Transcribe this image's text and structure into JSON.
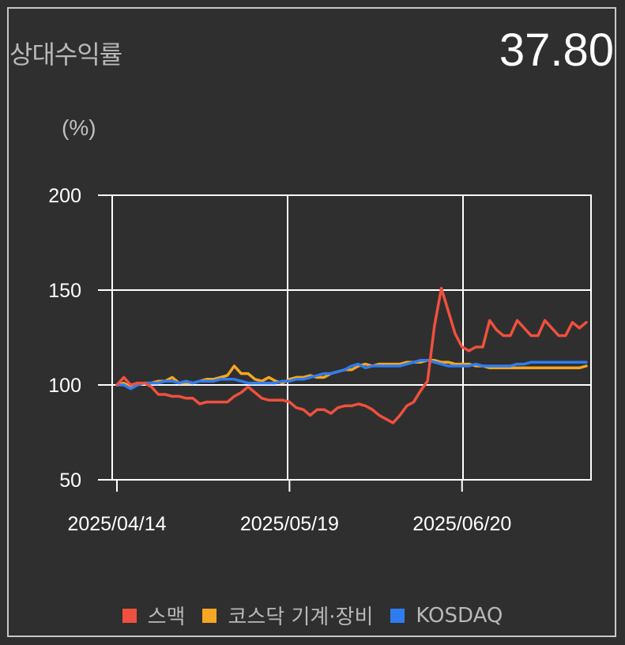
{
  "header": {
    "title": "상대수익률",
    "value": "37.80"
  },
  "chart_data": {
    "type": "line",
    "unit_label": "(%)",
    "ylim": [
      50,
      200
    ],
    "yticks": [
      50,
      100,
      150,
      200
    ],
    "x_tick_labels": [
      "2025/04/14",
      "2025/05/19",
      "2025/06/20"
    ],
    "x_tick_index": [
      0,
      25,
      50
    ],
    "num_points": 69,
    "grid": true,
    "legend_position": "bottom",
    "series": [
      {
        "name": "스맥",
        "color": "#f0503e",
        "values": [
          100,
          104,
          100,
          101,
          101,
          99,
          95,
          95,
          94,
          94,
          93,
          93,
          90,
          91,
          91,
          91,
          91,
          94,
          96,
          99,
          96,
          93,
          92,
          92,
          92,
          91,
          88,
          87,
          84,
          87,
          87,
          85,
          88,
          89,
          89,
          90,
          89,
          87,
          84,
          82,
          80,
          84,
          89,
          91,
          97,
          102,
          131,
          151,
          139,
          127,
          120,
          118,
          120,
          120,
          134,
          129,
          126,
          126,
          134,
          130,
          126,
          126,
          134,
          130,
          126,
          126,
          133,
          130,
          133
        ]
      },
      {
        "name": "코스닥 기계·장비",
        "color": "#f5a623",
        "values": [
          100,
          101,
          99,
          100,
          101,
          101,
          102,
          102,
          104,
          101,
          101,
          101,
          102,
          103,
          103,
          104,
          105,
          110,
          106,
          106,
          103,
          102,
          104,
          102,
          101,
          103,
          104,
          104,
          105,
          104,
          104,
          106,
          107,
          108,
          108,
          110,
          111,
          110,
          111,
          111,
          111,
          111,
          112,
          112,
          112,
          113,
          113,
          112,
          112,
          111,
          111,
          111,
          110,
          110,
          109,
          109,
          109,
          109,
          109,
          109,
          109,
          109,
          109,
          109,
          109,
          109,
          109,
          109,
          110
        ]
      },
      {
        "name": "KOSDAQ",
        "color": "#2f7cf0",
        "values": [
          100,
          100,
          98,
          100,
          101,
          101,
          101,
          102,
          102,
          101,
          102,
          101,
          102,
          102,
          102,
          103,
          103,
          103,
          102,
          101,
          101,
          101,
          101,
          101,
          102,
          102,
          103,
          103,
          104,
          105,
          106,
          106,
          107,
          108,
          110,
          111,
          109,
          110,
          110,
          110,
          110,
          110,
          111,
          112,
          113,
          113,
          112,
          111,
          110,
          110,
          110,
          110,
          111,
          110,
          110,
          110,
          110,
          110,
          111,
          111,
          112,
          112,
          112,
          112,
          112,
          112,
          112,
          112,
          112
        ]
      }
    ]
  }
}
